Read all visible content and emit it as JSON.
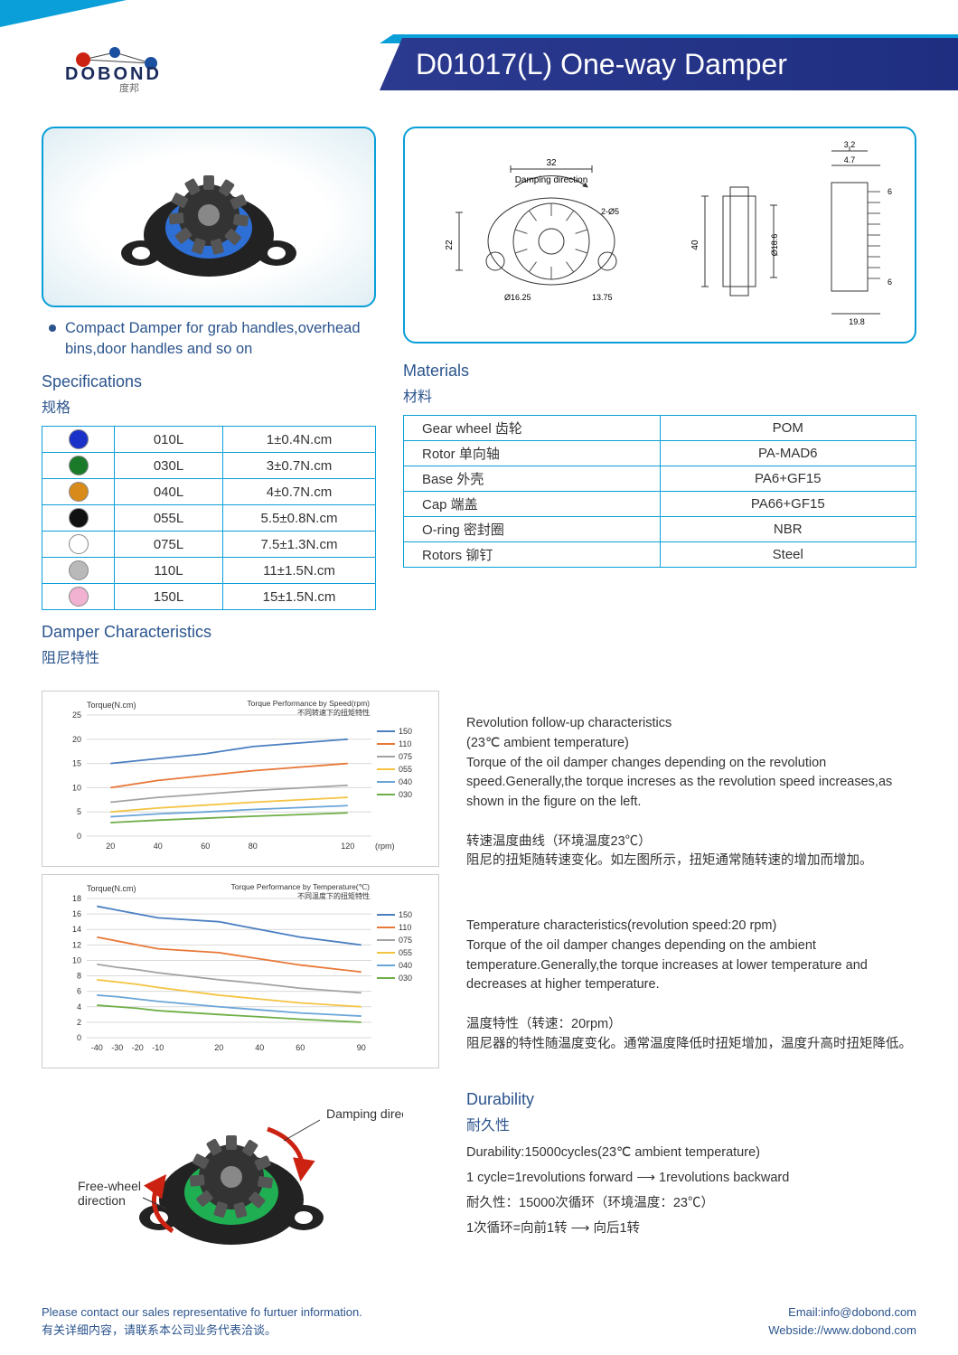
{
  "header": {
    "brand_en": "DOBOND",
    "brand_cn": "度邦",
    "title": "D01017(L) One-way Damper"
  },
  "bullet": "Compact Damper for  grab handles,overhead bins,door handles and so on",
  "sections": {
    "specs_en": "Specifications",
    "specs_cn": "规格",
    "materials_en": "Materials",
    "materials_cn": "材料",
    "char_en": "Damper Characteristics",
    "char_cn": "阻尼特性",
    "dur_en": "Durability",
    "dur_cn": "耐久性"
  },
  "specs": [
    {
      "color": "#1b32c8",
      "code": "010L",
      "torque": "1±0.4N.cm"
    },
    {
      "color": "#1a7a2a",
      "code": "030L",
      "torque": "3±0.7N.cm"
    },
    {
      "color": "#d88a1a",
      "code": "040L",
      "torque": "4±0.7N.cm"
    },
    {
      "color": "#111111",
      "code": "055L",
      "torque": "5.5±0.8N.cm"
    },
    {
      "color": "#ffffff",
      "code": "075L",
      "torque": "7.5±1.3N.cm"
    },
    {
      "color": "#b9b9b9",
      "code": "110L",
      "torque": "11±1.5N.cm"
    },
    {
      "color": "#f1b2d2",
      "code": "150L",
      "torque": "15±1.5N.cm"
    }
  ],
  "materials": [
    {
      "part": "Gear wheel 齿轮",
      "mat": "POM"
    },
    {
      "part": "Rotor  单向轴",
      "mat": "PA-MAD6"
    },
    {
      "part": "Base 外壳",
      "mat": "PA6+GF15"
    },
    {
      "part": "Cap 端盖",
      "mat": "PA66+GF15"
    },
    {
      "part": "O-ring 密封圈",
      "mat": "NBR"
    },
    {
      "part": "Rotors 铆钉",
      "mat": "Steel"
    }
  ],
  "chart1": {
    "type": "line",
    "title_en": "Torque Performance by Speed(rpm)",
    "title_cn": "不同转速下的扭矩特性",
    "ylabel": "Torque(N.cm)",
    "xlabel": "(rpm)",
    "ylim": [
      0,
      25
    ],
    "ytick_step": 5,
    "xticks": [
      20,
      40,
      60,
      80,
      120
    ],
    "xlim": [
      10,
      130
    ],
    "bg": "#ffffff",
    "grid": "#d9d9d9",
    "label_fontsize": 9,
    "series": [
      {
        "name": "150",
        "color": "#4a7fc1",
        "y": [
          15,
          16,
          17,
          18.5,
          20
        ]
      },
      {
        "name": "110",
        "color": "#e87838",
        "y": [
          10,
          11.5,
          12.5,
          13.5,
          15
        ]
      },
      {
        "name": "075",
        "color": "#a2a2a2",
        "y": [
          7,
          8,
          8.7,
          9.4,
          10.5
        ]
      },
      {
        "name": "055",
        "color": "#f4c342",
        "y": [
          5,
          5.8,
          6.4,
          7,
          8
        ]
      },
      {
        "name": "040",
        "color": "#6aa5d8",
        "y": [
          4,
          4.6,
          5,
          5.5,
          6.3
        ]
      },
      {
        "name": "030",
        "color": "#6fae47",
        "y": [
          2.8,
          3.3,
          3.7,
          4.1,
          4.8
        ]
      }
    ],
    "line_width": 1.8
  },
  "chart2": {
    "type": "line",
    "title_en": "Torque Performance by Temperature(℃)",
    "title_cn": "不同温度下的扭矩特性",
    "ylabel": "Torque(N.cm)",
    "xlabel": "",
    "ylim": [
      0,
      18
    ],
    "ytick_step": 2,
    "xticks": [
      -40,
      -30,
      -20,
      -10,
      20,
      40,
      60,
      90
    ],
    "xlim": [
      -45,
      95
    ],
    "bg": "#ffffff",
    "grid": "#d9d9d9",
    "label_fontsize": 9,
    "series": [
      {
        "name": "150",
        "color": "#4a7fc1",
        "y": [
          17,
          16.5,
          16,
          15.5,
          15,
          14,
          13,
          12
        ]
      },
      {
        "name": "110",
        "color": "#e87838",
        "y": [
          13,
          12.5,
          12,
          11.5,
          11,
          10.2,
          9.4,
          8.5
        ]
      },
      {
        "name": "075",
        "color": "#a2a2a2",
        "y": [
          9.5,
          9.1,
          8.8,
          8.4,
          7.5,
          7,
          6.4,
          5.8
        ]
      },
      {
        "name": "055",
        "color": "#f4c342",
        "y": [
          7.5,
          7.2,
          6.9,
          6.5,
          5.5,
          5,
          4.5,
          4
        ]
      },
      {
        "name": "040",
        "color": "#6aa5d8",
        "y": [
          5.5,
          5.3,
          5,
          4.7,
          4,
          3.6,
          3.2,
          2.8
        ]
      },
      {
        "name": "030",
        "color": "#6fae47",
        "y": [
          4.2,
          4,
          3.8,
          3.5,
          3,
          2.7,
          2.4,
          2
        ]
      }
    ],
    "line_width": 1.8
  },
  "explain": {
    "rev_h": "Revolution follow-up characteristics",
    "rev_temp": "(23℃ ambient temperature)",
    "rev_body": "Torque of the oil damper changes depending on the revolution speed.Generally,the torque increses as the revolution speed increases,as shown in the figure on the left.",
    "rev_cn_h": "转速温度曲线（环境温度23℃）",
    "rev_cn_b": "阻尼的扭矩随转速变化。如左图所示，扭矩通常随转速的增加而增加。",
    "tmp_h": "Temperature characteristics(revolution speed:20 rpm)",
    "tmp_body": "Torque of the oil damper changes depending on the ambient temperature.Generally,the torque increases at lower temperature and decreases at higher temperature.",
    "tmp_cn_h": "温度特性（转速：20rpm）",
    "tmp_cn_b": "阻尼器的特性随温度变化。通常温度降低时扭矩增加，温度升高时扭矩降低。"
  },
  "damping_labels": {
    "damp": "Damping direction",
    "free": "Free-wheel direction"
  },
  "drawing": {
    "label": "Damping direction",
    "dims": [
      "32",
      "22",
      "Ø16.25",
      "2-Ø5",
      "13.75",
      "40",
      "Ø18.6",
      "3.2",
      "4.7",
      "6",
      "6",
      "19.8"
    ]
  },
  "durability": {
    "l1": "Durability:15000cycles(23℃ ambient temperature)",
    "l2": "1 cycle=1revolutions forward ⟶ 1revolutions backward",
    "l3": "耐久性：15000次循环（环境温度：23℃）",
    "l4": "1次循环=向前1转 ⟶ 向后1转"
  },
  "footer": {
    "left_en": "Please contact our sales representative fo furtuer information.",
    "left_cn": "有关详细内容，请联系本公司业务代表洽谈。",
    "email": "Email:info@dobond.com",
    "web": "Webside://www.dobond.com"
  },
  "colors": {
    "brand": "#2b548d",
    "accent": "#0a9fd8",
    "titlebar": "#2b3a8f"
  }
}
